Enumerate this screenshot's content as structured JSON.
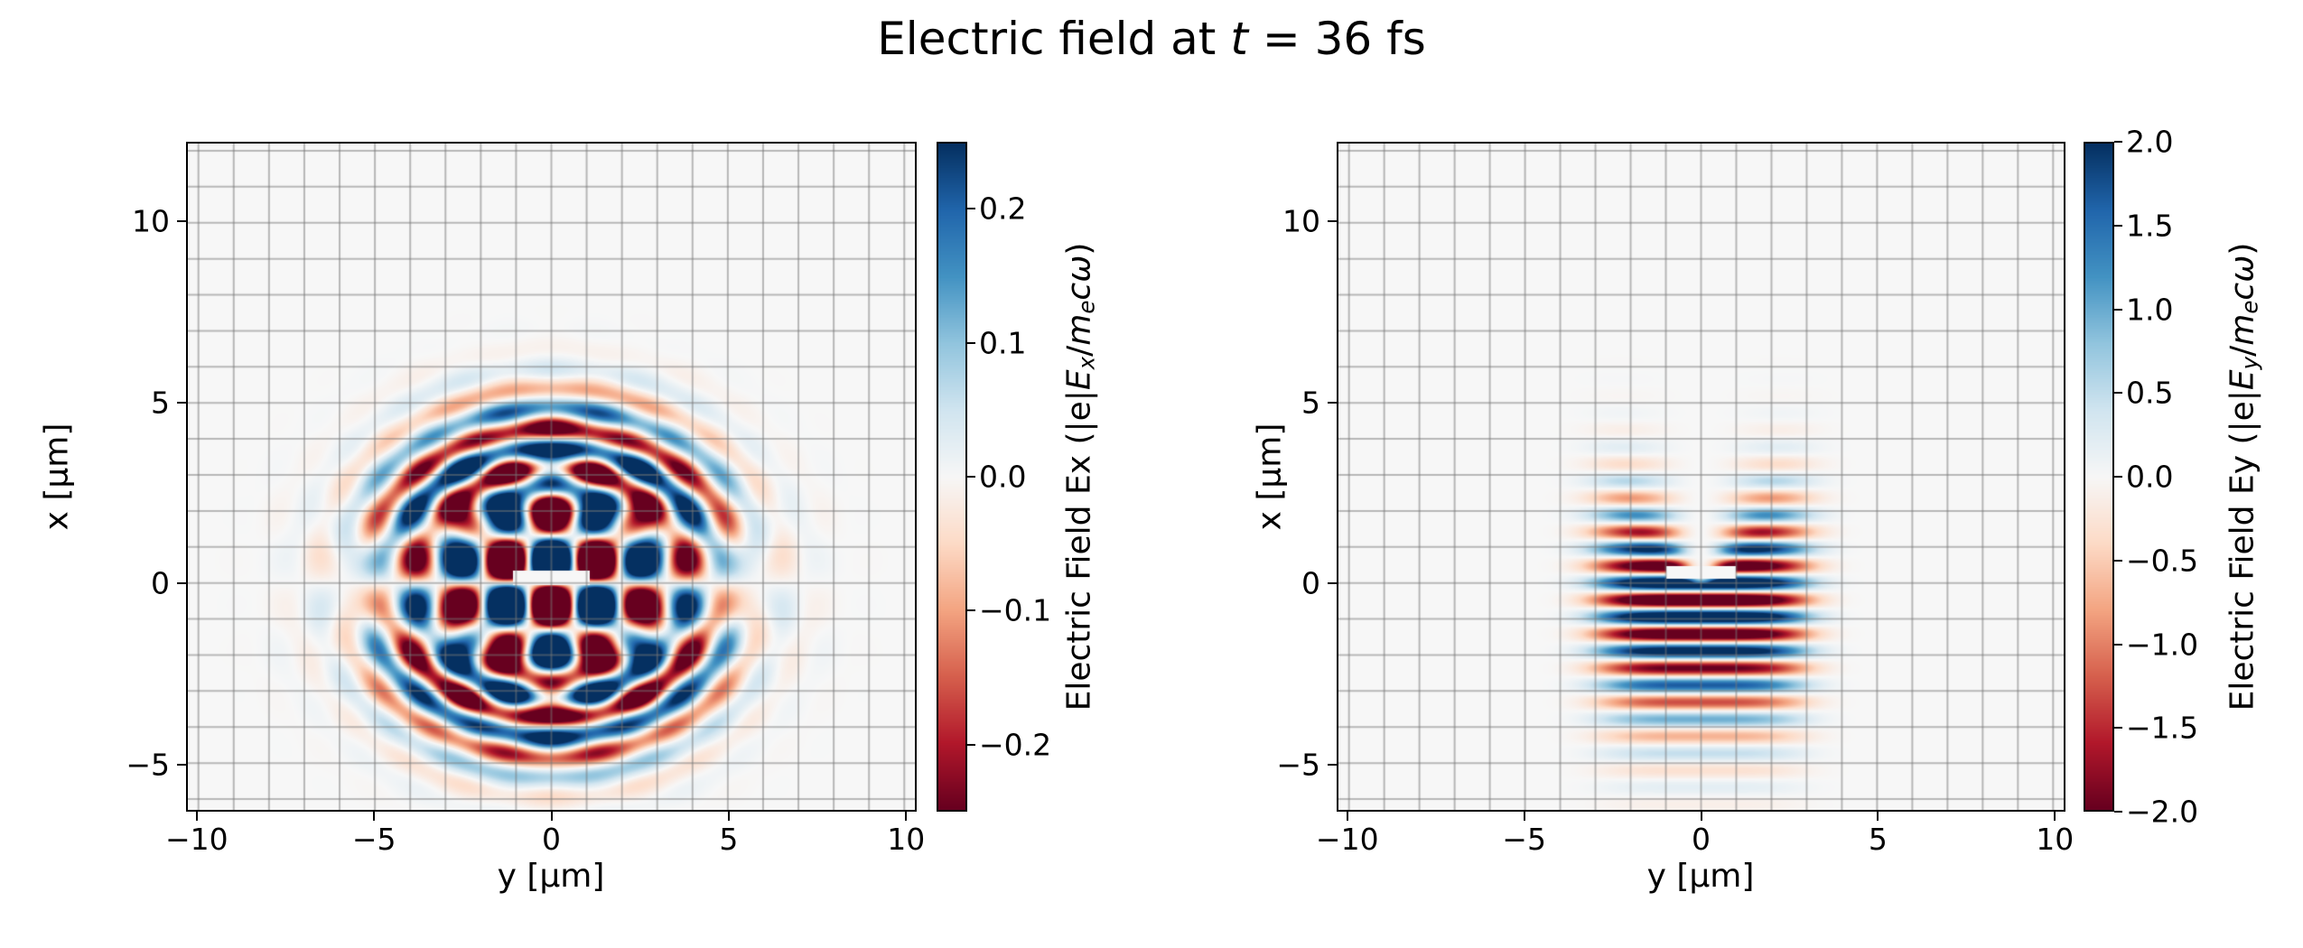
{
  "figure": {
    "title_parts": [
      {
        "t": "Electric field at "
      },
      {
        "t": "t",
        "i": true
      },
      {
        "t": " = 36 fs"
      }
    ],
    "title_text": "Electric field at t = 36 fs"
  },
  "colors": {
    "background": "#ffffff",
    "grid": "rgba(120,120,120,0.5)",
    "spine": "#000000",
    "text": "#000000",
    "cmap_name": "RdBu",
    "cmap_stops": [
      "#67001f",
      "#b2182b",
      "#d6604d",
      "#f4a582",
      "#fddbc7",
      "#f7f7f7",
      "#d1e5f0",
      "#92c5de",
      "#4393c3",
      "#2166ac",
      "#053061"
    ]
  },
  "chart_data": {
    "type": "heatmap",
    "title": "Electric field at t = 36 fs",
    "time_fs": 36,
    "grid": "on",
    "panels": [
      {
        "name": "Ex",
        "xlabel": "y [μm]",
        "ylabel": "x [μm]",
        "xlim": [
          -10.3,
          10.3
        ],
        "ylim": [
          -6.3,
          12.2
        ],
        "x_ticks": [
          {
            "v": -10,
            "label": "−10"
          },
          {
            "v": -5,
            "label": "−5"
          },
          {
            "v": 0,
            "label": "0"
          },
          {
            "v": 5,
            "label": "5"
          },
          {
            "v": 10,
            "label": "10"
          }
        ],
        "y_ticks": [
          {
            "v": 10,
            "label": "10"
          },
          {
            "v": 5,
            "label": "5"
          },
          {
            "v": 0,
            "label": "0"
          },
          {
            "v": -5,
            "label": "−5"
          }
        ],
        "grid_step": 1,
        "colorbar": {
          "vmin": -0.25,
          "vmax": 0.25,
          "ticks": [
            {
              "v": 0.2,
              "label": "0.2"
            },
            {
              "v": 0.1,
              "label": "0.1"
            },
            {
              "v": 0.0,
              "label": "0.0"
            },
            {
              "v": -0.1,
              "label": "−0.1"
            },
            {
              "v": -0.2,
              "label": "−0.2"
            }
          ],
          "label_parts": [
            {
              "t": "Electric Field Ex (|e|"
            },
            {
              "t": "E",
              "i": true
            },
            {
              "t": "x",
              "i": true,
              "sub": true
            },
            {
              "t": "/"
            },
            {
              "t": "m",
              "i": true
            },
            {
              "t": "e",
              "i": true,
              "sub": true
            },
            {
              "t": "c",
              "i": true
            },
            {
              "t": "ω",
              "i": true
            },
            {
              "t": ")"
            }
          ],
          "label_text": "Electric Field Ex (|e|Ex/mecω)"
        },
        "field_approx": {
          "kind": "interference",
          "lam_x": 2.6,
          "lam_y": 2.6,
          "ell": 1.25,
          "sigma": 2.9,
          "amp": 0.95,
          "amp_r": 0.3,
          "lam_r": 1.15,
          "ring_r": 3.8,
          "ring_w": 1.5,
          "bar": {
            "cx": 0.15,
            "hh": 0.2,
            "hw": 1.1
          }
        }
      },
      {
        "name": "Ey",
        "xlabel": "y [μm]",
        "ylabel": "x [μm]",
        "xlim": [
          -10.3,
          10.3
        ],
        "ylim": [
          -6.3,
          12.2
        ],
        "x_ticks": [
          {
            "v": -10,
            "label": "−10"
          },
          {
            "v": -5,
            "label": "−5"
          },
          {
            "v": 0,
            "label": "0"
          },
          {
            "v": 5,
            "label": "5"
          },
          {
            "v": 10,
            "label": "10"
          }
        ],
        "y_ticks": [
          {
            "v": 10,
            "label": "10"
          },
          {
            "v": 5,
            "label": "5"
          },
          {
            "v": 0,
            "label": "0"
          },
          {
            "v": -5,
            "label": "−5"
          }
        ],
        "grid_step": 1,
        "colorbar": {
          "vmin": -2.0,
          "vmax": 2.0,
          "ticks": [
            {
              "v": 2.0,
              "label": "2.0"
            },
            {
              "v": 1.5,
              "label": "1.5"
            },
            {
              "v": 1.0,
              "label": "1.0"
            },
            {
              "v": 0.5,
              "label": "0.5"
            },
            {
              "v": 0.0,
              "label": "0.0"
            },
            {
              "v": -0.5,
              "label": "−0.5"
            },
            {
              "v": -1.0,
              "label": "−1.0"
            },
            {
              "v": -1.5,
              "label": "−1.5"
            },
            {
              "v": -2.0,
              "label": "−2.0"
            }
          ],
          "label_parts": [
            {
              "t": "Electric Field Ey (|e|"
            },
            {
              "t": "E",
              "i": true
            },
            {
              "t": "y",
              "i": true,
              "sub": true
            },
            {
              "t": "/"
            },
            {
              "t": "m",
              "i": true
            },
            {
              "t": "e",
              "i": true,
              "sub": true
            },
            {
              "t": "c",
              "i": true
            },
            {
              "t": "ω",
              "i": true
            },
            {
              "t": ")"
            }
          ],
          "label_text": "Electric Field Ey (|e|Ey/mecω)"
        },
        "field_approx": {
          "kind": "stripes",
          "lam": 0.95,
          "phase": 0.0,
          "sig_y": 2.9,
          "sig_x": 3.2,
          "x0": 0.4,
          "amp": 3.0,
          "gap_w0": 0.35,
          "gap_slope": 0.55,
          "bar": {
            "cx": 0.3,
            "hh": 0.18,
            "hw": 1.0
          }
        }
      }
    ]
  }
}
